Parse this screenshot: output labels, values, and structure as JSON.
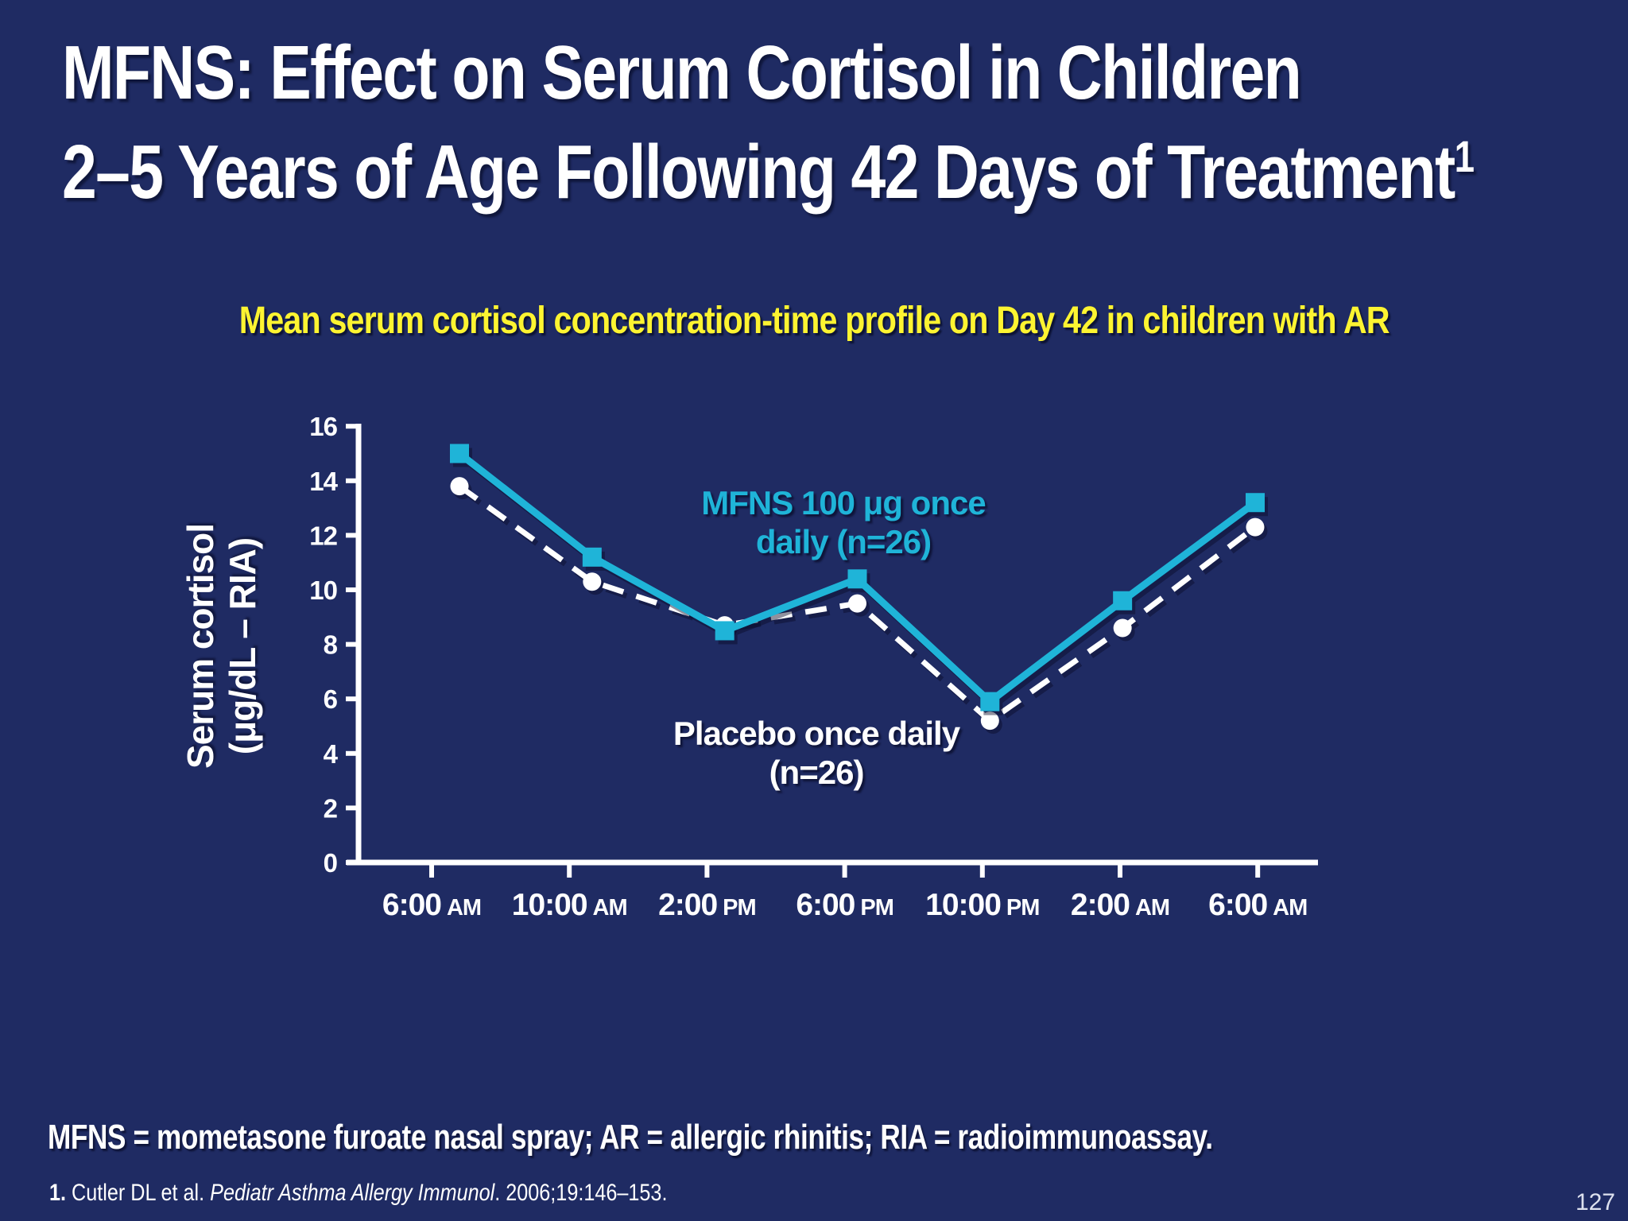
{
  "slide": {
    "title_line1": "MFNS: Effect on Serum Cortisol in Children",
    "title_line2": "2–5 Years of Age Following 42 Days of Treatment",
    "title_superscript": "1",
    "subtitle": "Mean serum cortisol concentration-time profile on Day 42 in children with AR",
    "page_number": "127",
    "colors": {
      "background": "#1f2b63",
      "accent_teal": "#1fb4d8",
      "subtitle_yellow": "#fdf431",
      "text_white": "#ffffff"
    }
  },
  "footnote": {
    "abbreviations": "MFNS = mometasone furoate nasal spray; AR = allergic rhinitis; RIA = radioimmunoassay.",
    "reference_number": "1.",
    "reference_pre": " Cutler DL et al. ",
    "reference_journal": "Pediatr Asthma Allergy Immunol",
    "reference_post": ". 2006;19:146–153."
  },
  "chart_data": {
    "type": "line",
    "title": "Mean serum cortisol concentration-time profile on Day 42 in children with AR",
    "xlabel": "",
    "ylabel": "Serum cortisol\n(μg/dL – RIA)",
    "x_tick_labels": [
      "6:00 AM",
      "10:00 AM",
      "2:00 PM",
      "6:00 PM",
      "10:00 PM",
      "2:00 AM",
      "6:00 AM"
    ],
    "y_ticks": [
      0,
      2,
      4,
      6,
      8,
      10,
      12,
      14,
      16
    ],
    "ylim": [
      0,
      16
    ],
    "grid": false,
    "legend_position": "inline-annotations",
    "series": [
      {
        "name": "MFNS 100 μg once daily (n=26)",
        "annotation": "MFNS 100 μg once\ndaily (n=26)",
        "color": "#1fb4d8",
        "line_style": "solid",
        "marker": "square",
        "values": [
          15.0,
          11.2,
          8.5,
          10.4,
          5.9,
          9.6,
          13.2
        ]
      },
      {
        "name": "Placebo once daily (n=26)",
        "annotation": "Placebo once daily\n(n=26)",
        "color": "#ffffff",
        "line_style": "dashed",
        "marker": "circle",
        "values": [
          13.8,
          10.3,
          8.7,
          9.5,
          5.2,
          8.6,
          12.3
        ]
      }
    ]
  }
}
